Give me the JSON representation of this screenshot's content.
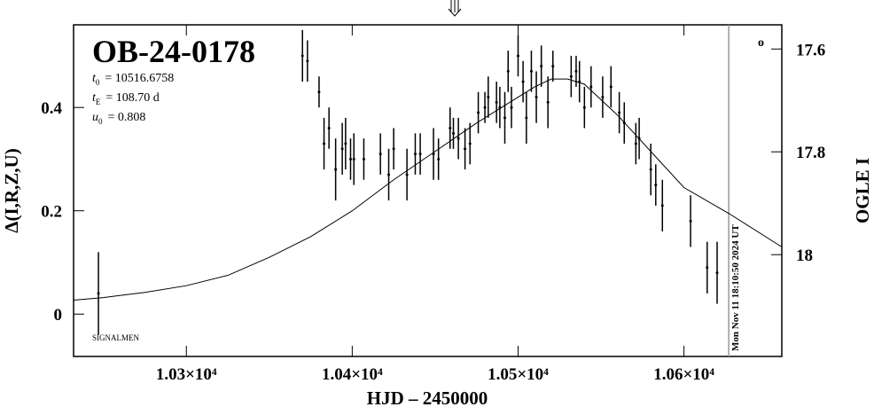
{
  "chart_data": {
    "type": "scatter",
    "title": "OB-24-0178",
    "parameters": [
      {
        "symbol": "t",
        "subscript": "0",
        "text": "= 10516.6758"
      },
      {
        "symbol": "t",
        "subscript": "E",
        "text": "= 108.70 d"
      },
      {
        "symbol": "u",
        "subscript": "0",
        "text": "= 0.808"
      }
    ],
    "footnote": "SIGNALMEN",
    "timestamp": "Mon Nov 11 18:10:50 2024 UT",
    "corner_mark": "o",
    "x_label": "HJD – 2450000",
    "y_label": "Δ(I,R,Z,U)",
    "y2_label": "OGLE I",
    "xlim": [
      10232,
      10659
    ],
    "ylim": [
      -0.082,
      0.56
    ],
    "y2lim": [
      18.198,
      17.553
    ],
    "xticks": [
      {
        "value": 10300,
        "label": "1.03×10⁴"
      },
      {
        "value": 10400,
        "label": "1.04×10⁴"
      },
      {
        "value": 10500,
        "label": "1.05×10⁴"
      },
      {
        "value": 10600,
        "label": "1.06×10⁴"
      }
    ],
    "yticks": [
      0,
      0.2,
      0.4
    ],
    "y2ticks": [
      17.6,
      17.8,
      18
    ],
    "now_x": 10627,
    "color": "#000000",
    "x": [
      10247,
      10370,
      10373,
      10380,
      10383,
      10386,
      10390,
      10394,
      10396,
      10399,
      10401,
      10407,
      10417,
      10422,
      10425,
      10433,
      10438,
      10441,
      10449,
      10452,
      10459,
      10461,
      10464,
      10468,
      10471,
      10476,
      10480,
      10482,
      10487,
      10489,
      10492,
      10494,
      10496,
      10500,
      10503,
      10505,
      10508,
      10511,
      10514,
      10518,
      10521,
      10532,
      10535,
      10537,
      10540,
      10544,
      10551,
      10556,
      10561,
      10564,
      10571,
      10573,
      10580,
      10583,
      10587,
      10604,
      10614,
      10620
    ],
    "values": [
      0.04,
      0.5,
      0.49,
      0.43,
      0.33,
      0.36,
      0.28,
      0.32,
      0.33,
      0.3,
      0.3,
      0.3,
      0.31,
      0.27,
      0.32,
      0.27,
      0.31,
      0.31,
      0.31,
      0.3,
      0.36,
      0.35,
      0.34,
      0.32,
      0.33,
      0.39,
      0.4,
      0.42,
      0.41,
      0.4,
      0.38,
      0.47,
      0.4,
      0.5,
      0.45,
      0.38,
      0.47,
      0.42,
      0.48,
      0.41,
      0.48,
      0.46,
      0.47,
      0.45,
      0.4,
      0.44,
      0.42,
      0.44,
      0.39,
      0.37,
      0.33,
      0.34,
      0.28,
      0.25,
      0.21,
      0.18,
      0.09,
      0.08
    ],
    "errors": [
      0.08,
      0.05,
      0.04,
      0.03,
      0.05,
      0.04,
      0.06,
      0.05,
      0.05,
      0.04,
      0.05,
      0.04,
      0.04,
      0.05,
      0.04,
      0.05,
      0.04,
      0.04,
      0.05,
      0.04,
      0.04,
      0.03,
      0.04,
      0.04,
      0.04,
      0.04,
      0.03,
      0.04,
      0.04,
      0.04,
      0.05,
      0.04,
      0.04,
      0.04,
      0.04,
      0.05,
      0.04,
      0.05,
      0.04,
      0.05,
      0.03,
      0.04,
      0.03,
      0.04,
      0.04,
      0.04,
      0.04,
      0.04,
      0.04,
      0.04,
      0.04,
      0.04,
      0.05,
      0.04,
      0.05,
      0.05,
      0.05,
      0.06
    ],
    "model": {
      "x": [
        10232,
        10250,
        10275,
        10300,
        10325,
        10350,
        10375,
        10400,
        10425,
        10450,
        10475,
        10500,
        10510,
        10520,
        10530,
        10540,
        10560,
        10580,
        10600,
        10627,
        10659
      ],
      "values": [
        0.027,
        0.032,
        0.042,
        0.055,
        0.075,
        0.11,
        0.15,
        0.2,
        0.26,
        0.315,
        0.37,
        0.42,
        0.44,
        0.455,
        0.455,
        0.445,
        0.385,
        0.315,
        0.245,
        0.195,
        0.13
      ]
    }
  }
}
